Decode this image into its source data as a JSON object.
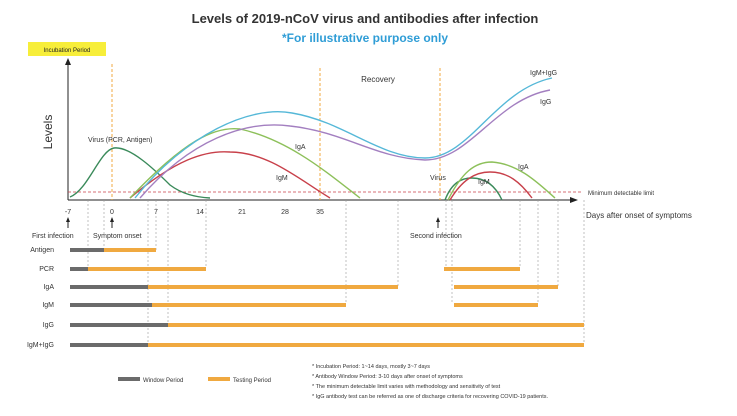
{
  "title": "Levels of 2019-nCoV virus and antibodies after infection",
  "subtitle": "*For illustrative purpose only",
  "incubation_label": "Incubation Period",
  "recovery_label": "Recovery",
  "ylabel": "Levels",
  "xlabel": "Days after onset of symptoms",
  "min_limit_label": "Minimum detectable limit",
  "x_ticks": [
    "-7",
    "0",
    "7",
    "14",
    "21",
    "28",
    "35"
  ],
  "curve_labels": {
    "virus": "Virus (PCR, Antigen)",
    "iga": "IgA",
    "igm": "IgM",
    "virus2": "Virus",
    "iga2": "IgA",
    "igm2": "IgM",
    "igm_igg": "IgM+IgG",
    "igg": "IgG"
  },
  "events": {
    "first": "First infection",
    "onset": "Symptom onset",
    "second": "Second infection"
  },
  "rows": [
    "Antigen",
    "PCR",
    "IgA",
    "IgM",
    "IgG",
    "IgM+IgG"
  ],
  "legend": {
    "window": "Window Period",
    "testing": "Testing Period"
  },
  "notes": [
    "* Incubation Period: 1~14 days, mostly 3~7 days",
    "* Antibody Window Period:   3-10 days after onset of symptoms",
    "* The minimum detectable limit varies with methodology and sensitivity of test",
    "* IgG antibody test can be referred as one of discharge criteria for recovering COVID-19 patients."
  ],
  "colors": {
    "virus": "#3a8a5a",
    "iga": "#8dc05a",
    "igm": "#c8404a",
    "igg": "#a37fc0",
    "igm_igg": "#55b8d8",
    "window": "#6b6b6b",
    "testing": "#f0a940",
    "dashed_orange": "#f0a940",
    "dashed_red": "#c8404a"
  }
}
